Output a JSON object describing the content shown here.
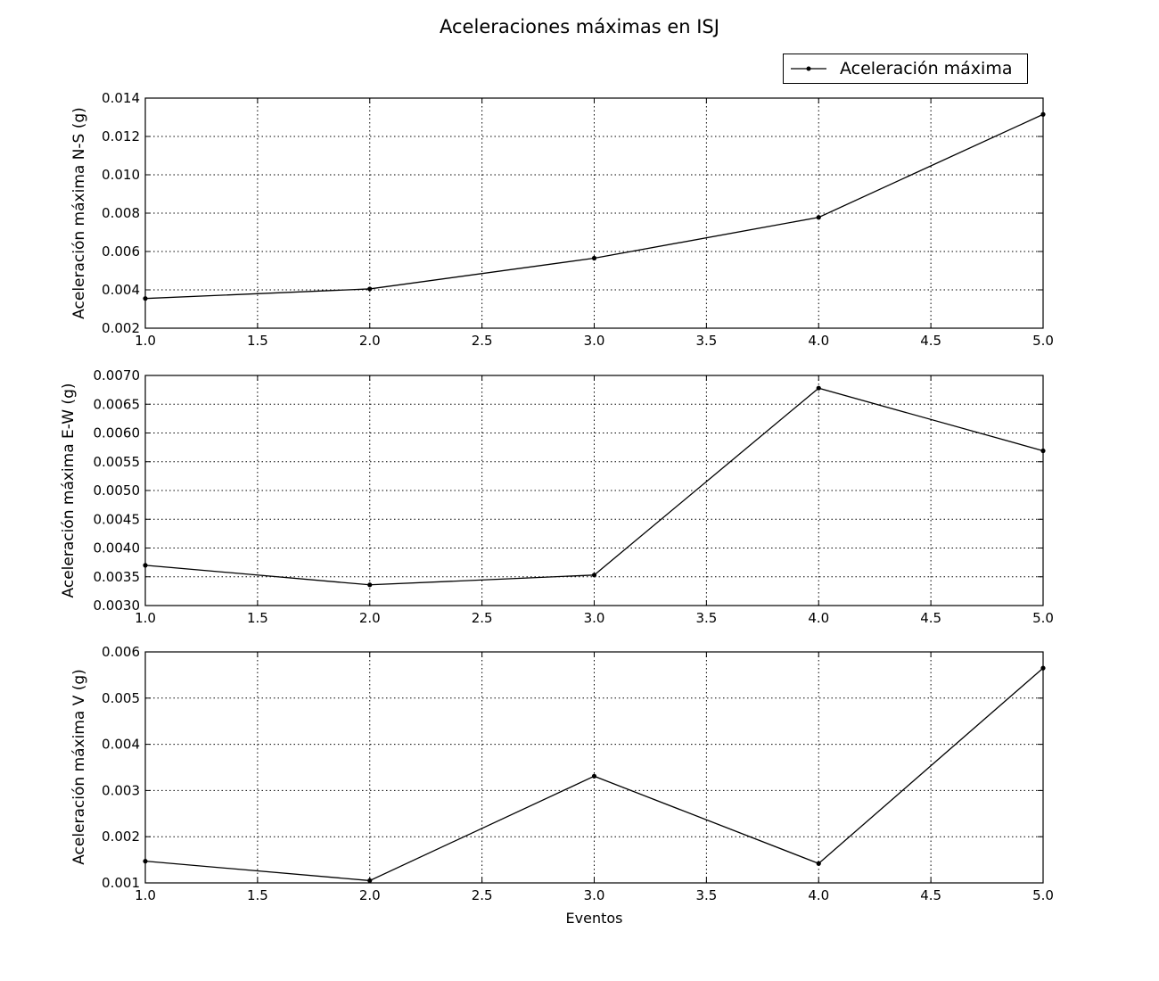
{
  "figure": {
    "title": "Aceleraciones máximas en ISJ",
    "legend_label": "Aceleración máxima",
    "line_color": "#000000"
  },
  "chart_data": [
    {
      "type": "line",
      "ylabel": "Aceleración máxima N-S (g)",
      "xlabel": "",
      "x": [
        1,
        2,
        3,
        4,
        5
      ],
      "series": [
        {
          "name": "Aceleración máxima",
          "values": [
            0.00355,
            0.00405,
            0.00565,
            0.00778,
            0.01315
          ]
        }
      ],
      "xlim": [
        1.0,
        5.0
      ],
      "ylim": [
        0.002,
        0.014
      ],
      "xticks": [
        "1.0",
        "1.5",
        "2.0",
        "2.5",
        "3.0",
        "3.5",
        "4.0",
        "4.5",
        "5.0"
      ],
      "yticks": [
        "0.002",
        "0.004",
        "0.006",
        "0.008",
        "0.010",
        "0.012",
        "0.014"
      ],
      "grid": true,
      "legend": "above-right"
    },
    {
      "type": "line",
      "ylabel": "Aceleración máxima E-W (g)",
      "xlabel": "",
      "x": [
        1,
        2,
        3,
        4,
        5
      ],
      "series": [
        {
          "name": "Aceleración máxima",
          "values": [
            0.0037,
            0.00336,
            0.00353,
            0.00678,
            0.00569
          ]
        }
      ],
      "xlim": [
        1.0,
        5.0
      ],
      "ylim": [
        0.003,
        0.007
      ],
      "xticks": [
        "1.0",
        "1.5",
        "2.0",
        "2.5",
        "3.0",
        "3.5",
        "4.0",
        "4.5",
        "5.0"
      ],
      "yticks": [
        "0.0030",
        "0.0035",
        "0.0040",
        "0.0045",
        "0.0050",
        "0.0055",
        "0.0060",
        "0.0065",
        "0.0070"
      ],
      "grid": true
    },
    {
      "type": "line",
      "ylabel": "Aceleración máxima V (g)",
      "xlabel": "Eventos",
      "x": [
        1,
        2,
        3,
        4,
        5
      ],
      "series": [
        {
          "name": "Aceleración máxima",
          "values": [
            0.00147,
            0.00105,
            0.00331,
            0.00142,
            0.00565
          ]
        }
      ],
      "xlim": [
        1.0,
        5.0
      ],
      "ylim": [
        0.001,
        0.006
      ],
      "xticks": [
        "1.0",
        "1.5",
        "2.0",
        "2.5",
        "3.0",
        "3.5",
        "4.0",
        "4.5",
        "5.0"
      ],
      "yticks": [
        "0.001",
        "0.002",
        "0.003",
        "0.004",
        "0.005",
        "0.006"
      ],
      "grid": true
    }
  ]
}
